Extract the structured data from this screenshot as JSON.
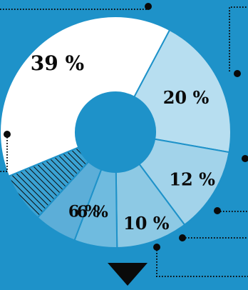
{
  "chart_data": {
    "type": "pie",
    "donut": true,
    "categories": [
      "",
      "",
      "",
      "",
      "",
      "",
      ""
    ],
    "values": [
      20,
      12,
      10,
      6,
      6,
      7,
      39
    ],
    "labels": [
      "20 %",
      "12 %",
      "10 %",
      "6 %",
      "6 %",
      "",
      "39 %"
    ],
    "colors": [
      "#b7def0",
      "#a2d3ea",
      "#8dc9e4",
      "#6fbbdf",
      "#5caed8",
      "hatched",
      "#ffffff"
    ],
    "background_color": "#1e92c9",
    "legend": "none",
    "title": ""
  }
}
